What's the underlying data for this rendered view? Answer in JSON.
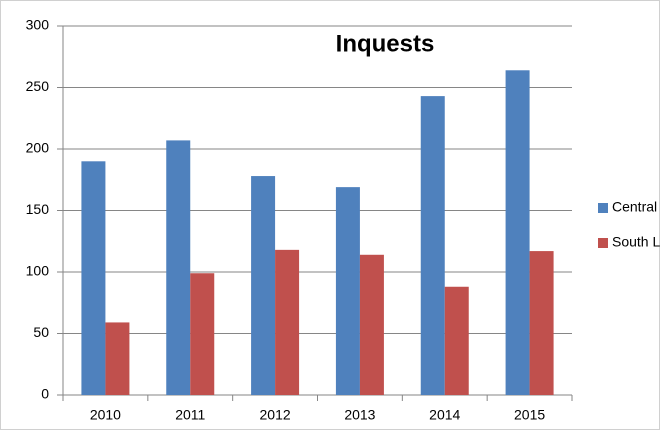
{
  "chart_data": {
    "type": "bar",
    "title": "Inquests",
    "categories": [
      "2010",
      "2011",
      "2012",
      "2013",
      "2014",
      "2015"
    ],
    "series": [
      {
        "name": "Central",
        "color": "#4f81bd",
        "values": [
          190,
          207,
          178,
          169,
          243,
          264
        ]
      },
      {
        "name": "South L",
        "color": "#c0504d",
        "values": [
          59,
          99,
          118,
          114,
          88,
          117
        ]
      }
    ],
    "ylim": [
      0,
      300
    ],
    "yticks": [
      0,
      50,
      100,
      150,
      200,
      250,
      300
    ],
    "grid": true,
    "legend": "right"
  }
}
